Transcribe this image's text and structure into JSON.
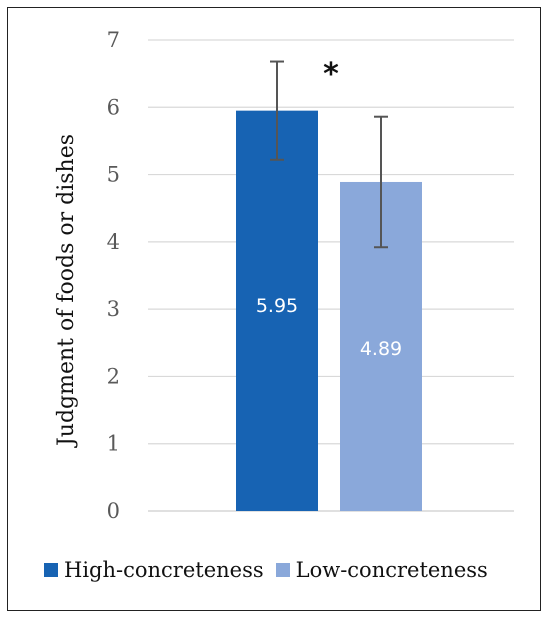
{
  "chart_data": {
    "type": "bar",
    "categories": [
      "High-concreteness",
      "Low-concreteness"
    ],
    "series": [
      {
        "name": "High-concreteness",
        "value": 5.95,
        "error": 0.73,
        "color": "#1763B3"
      },
      {
        "name": "Low-concreteness",
        "value": 4.89,
        "error": 0.97,
        "color": "#8AA8DA"
      }
    ],
    "data_labels": [
      "5.95",
      "4.89"
    ],
    "ylabel": "Judgment of foods or dishes",
    "xlabel": "",
    "ylim": [
      0,
      7
    ],
    "yticks": [
      "0",
      "1",
      "2",
      "3",
      "4",
      "5",
      "6",
      "7"
    ],
    "grid": true,
    "legend_position": "bottom",
    "significance_marker": "*"
  }
}
